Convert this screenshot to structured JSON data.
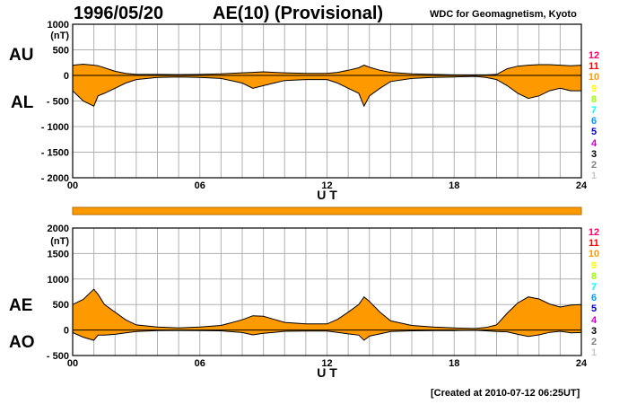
{
  "header": {
    "date": "1996/05/20",
    "title": "AE(10) (Provisional)",
    "source": "WDC for Geomagnetism, Kyoto"
  },
  "footer": {
    "created": "[Created at 2010-07-12 06:25UT]"
  },
  "side_labels": {
    "au": "AU",
    "al": "AL",
    "ae": "AE",
    "ao": "AO"
  },
  "colors": {
    "fill": "#ff9900",
    "grid": "#b0b0b0",
    "line": "#000000"
  },
  "level_scale": [
    {
      "label": "12",
      "color": "#ff0066"
    },
    {
      "label": "11",
      "color": "#ff0000"
    },
    {
      "label": "10",
      "color": "#ff9900"
    },
    {
      "label": "9",
      "color": "#ffff00"
    },
    {
      "label": "8",
      "color": "#99ff00"
    },
    {
      "label": "7",
      "color": "#00ffff"
    },
    {
      "label": "6",
      "color": "#0099ff"
    },
    {
      "label": "5",
      "color": "#0000cc"
    },
    {
      "label": "4",
      "color": "#cc00cc"
    },
    {
      "label": "3",
      "color": "#000000"
    },
    {
      "label": "2",
      "color": "#808080"
    },
    {
      "label": "1",
      "color": "#c8c8c8"
    }
  ],
  "chart_data": [
    {
      "type": "area",
      "name": "AU / AL",
      "x_unit": "U T",
      "y_unit": "(nT)",
      "xlim": [
        0,
        24
      ],
      "ylim": [
        -2000,
        1000
      ],
      "x_ticks": [
        "00",
        "06",
        "12",
        "18",
        "24"
      ],
      "y_ticks": [
        "1000",
        "500",
        "0",
        "- 500",
        "- 1000",
        "- 1500",
        "- 2000"
      ],
      "grid": true,
      "x": [
        0,
        0.5,
        1,
        1.2,
        1.5,
        2,
        2.5,
        3,
        4,
        5,
        6,
        7,
        8,
        8.5,
        9,
        9.5,
        10,
        11,
        12,
        12.5,
        13,
        13.5,
        13.75,
        14,
        14.5,
        15,
        16,
        17,
        18,
        19,
        19.5,
        20,
        20.5,
        21,
        21.5,
        22,
        22.5,
        23,
        23.5,
        24
      ],
      "series": [
        {
          "name": "AU",
          "values": [
            200,
            220,
            200,
            190,
            150,
            80,
            40,
            20,
            20,
            15,
            20,
            30,
            50,
            60,
            70,
            60,
            50,
            40,
            40,
            60,
            100,
            150,
            200,
            160,
            100,
            60,
            30,
            20,
            10,
            10,
            10,
            20,
            130,
            180,
            200,
            210,
            210,
            200,
            190,
            200
          ]
        },
        {
          "name": "AL",
          "values": [
            -300,
            -500,
            -600,
            -400,
            -350,
            -250,
            -150,
            -80,
            -40,
            -30,
            -40,
            -60,
            -150,
            -250,
            -200,
            -150,
            -100,
            -80,
            -80,
            -150,
            -250,
            -350,
            -600,
            -400,
            -250,
            -120,
            -60,
            -40,
            -30,
            -20,
            -40,
            -80,
            -200,
            -350,
            -450,
            -400,
            -300,
            -250,
            -300,
            -300
          ]
        }
      ]
    },
    {
      "type": "area",
      "name": "AE / AO",
      "x_unit": "U T",
      "y_unit": "(nT)",
      "xlim": [
        0,
        24
      ],
      "ylim": [
        -500,
        2000
      ],
      "x_ticks": [
        "00",
        "06",
        "12",
        "18",
        "24"
      ],
      "y_ticks": [
        "2000",
        "1500",
        "1000",
        "500",
        "0",
        "- 500"
      ],
      "grid": true,
      "x": [
        0,
        0.5,
        1,
        1.2,
        1.5,
        2,
        2.5,
        3,
        4,
        5,
        6,
        7,
        8,
        8.5,
        9,
        9.5,
        10,
        11,
        12,
        12.5,
        13,
        13.5,
        13.75,
        14,
        14.5,
        15,
        16,
        17,
        18,
        19,
        19.5,
        20,
        20.5,
        21,
        21.5,
        22,
        22.5,
        23,
        23.5,
        24
      ],
      "series": [
        {
          "name": "AE",
          "values": [
            500,
            600,
            800,
            700,
            500,
            350,
            200,
            100,
            60,
            40,
            60,
            90,
            200,
            280,
            270,
            210,
            150,
            120,
            120,
            210,
            350,
            500,
            650,
            560,
            350,
            180,
            90,
            60,
            40,
            30,
            50,
            100,
            330,
            530,
            650,
            610,
            510,
            450,
            490,
            500
          ]
        },
        {
          "name": "AO",
          "values": [
            -50,
            -140,
            -200,
            -100,
            -100,
            -85,
            -55,
            -30,
            -10,
            -8,
            -10,
            -15,
            -50,
            -95,
            -65,
            -45,
            -25,
            -20,
            -20,
            -45,
            -75,
            -100,
            -200,
            -120,
            -75,
            -30,
            -15,
            -10,
            -10,
            -5,
            -15,
            -30,
            -35,
            -85,
            -125,
            -95,
            -45,
            -25,
            -55,
            -50
          ]
        }
      ]
    }
  ]
}
